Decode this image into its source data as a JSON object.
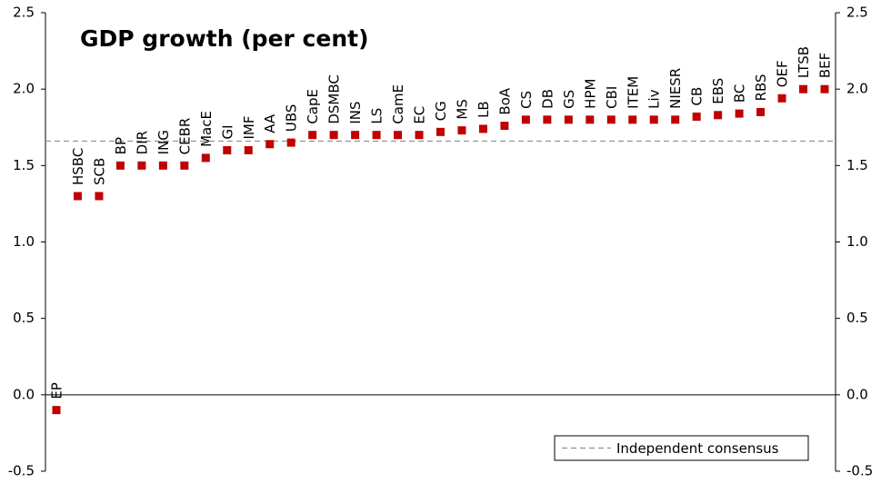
{
  "chart_data": {
    "type": "scatter",
    "title": "GDP growth (per cent)",
    "categories": [
      "EP",
      "HSBC",
      "SCB",
      "BP",
      "DIR",
      "ING",
      "CEBR",
      "MacE",
      "GI",
      "IMF",
      "AA",
      "UBS",
      "CapE",
      "DSMBC",
      "INS",
      "LS",
      "CamE",
      "EC",
      "CG",
      "MS",
      "LB",
      "BoA",
      "CS",
      "DB",
      "GS",
      "HPM",
      "CBI",
      "ITEM",
      "Liv",
      "NIESR",
      "CB",
      "EBS",
      "BC",
      "RBS",
      "OEF",
      "LTSB",
      "BEF"
    ],
    "values": [
      -0.1,
      1.3,
      1.3,
      1.5,
      1.5,
      1.5,
      1.5,
      1.55,
      1.6,
      1.6,
      1.64,
      1.65,
      1.7,
      1.7,
      1.7,
      1.7,
      1.7,
      1.7,
      1.72,
      1.73,
      1.74,
      1.76,
      1.8,
      1.8,
      1.8,
      1.8,
      1.8,
      1.8,
      1.8,
      1.8,
      1.82,
      1.83,
      1.84,
      1.85,
      1.94,
      2.0,
      2.0
    ],
    "color": "#c00000",
    "reference_line": {
      "name": "Independent consensus",
      "value": 1.66,
      "color": "#808080"
    },
    "ylim": [
      -0.5,
      2.5
    ],
    "yticks": [
      {
        "value": -0.5,
        "label": "-0.5"
      },
      {
        "value": 0,
        "label": "0.0"
      },
      0.5,
      {
        "value": 1,
        "label": "1.0"
      },
      1.5,
      {
        "value": 2,
        "label": "2.0"
      },
      2.5
    ],
    "y2lim": [
      -0.5,
      2.5
    ],
    "y2ticks": [
      {
        "value": -0.5,
        "label": "-0.5"
      },
      {
        "value": 0,
        "label": "0.0"
      },
      0.5,
      {
        "value": 1,
        "label": "1.0"
      },
      1.5,
      {
        "value": 2,
        "label": "2.0"
      },
      2.5
    ],
    "legend": "lower right"
  }
}
